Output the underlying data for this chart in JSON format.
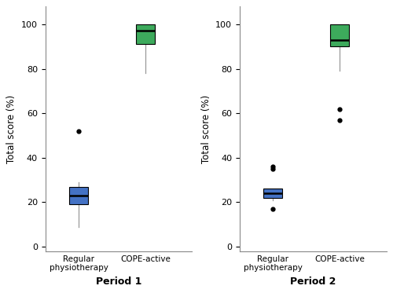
{
  "period1": {
    "regular": {
      "q1": 19,
      "median": 23,
      "q3": 27,
      "whisker_low": 9,
      "whisker_high": 29,
      "outliers": [
        52
      ],
      "color": "#4472C4"
    },
    "cope": {
      "q1": 91,
      "median": 97,
      "q3": 100,
      "whisker_low": 78,
      "whisker_high": 100,
      "outliers": [],
      "color": "#3DAA5C"
    }
  },
  "period2": {
    "regular": {
      "q1": 22,
      "median": 24,
      "q3": 26,
      "whisker_low": 21,
      "whisker_high": 26,
      "outliers": [
        17,
        35,
        36
      ],
      "color": "#4472C4"
    },
    "cope": {
      "q1": 90,
      "median": 93,
      "q3": 100,
      "whisker_low": 79,
      "whisker_high": 100,
      "outliers": [
        62,
        57
      ],
      "color": "#3DAA5C"
    }
  },
  "ylabel": "Total score (%)",
  "xlabel1": "Period 1",
  "xlabel2": "Period 2",
  "tick_labels": [
    "Regular\nphysiotherapy",
    "COPE-active"
  ],
  "ylim": [
    -2,
    108
  ],
  "yticks": [
    0,
    20,
    40,
    60,
    80,
    100
  ],
  "box_width": 0.28,
  "bg_color": "#FFFFFF",
  "whisker_color": "#999999",
  "median_color": "#000000",
  "outlier_color": "#000000",
  "outlier_size": 3.5
}
